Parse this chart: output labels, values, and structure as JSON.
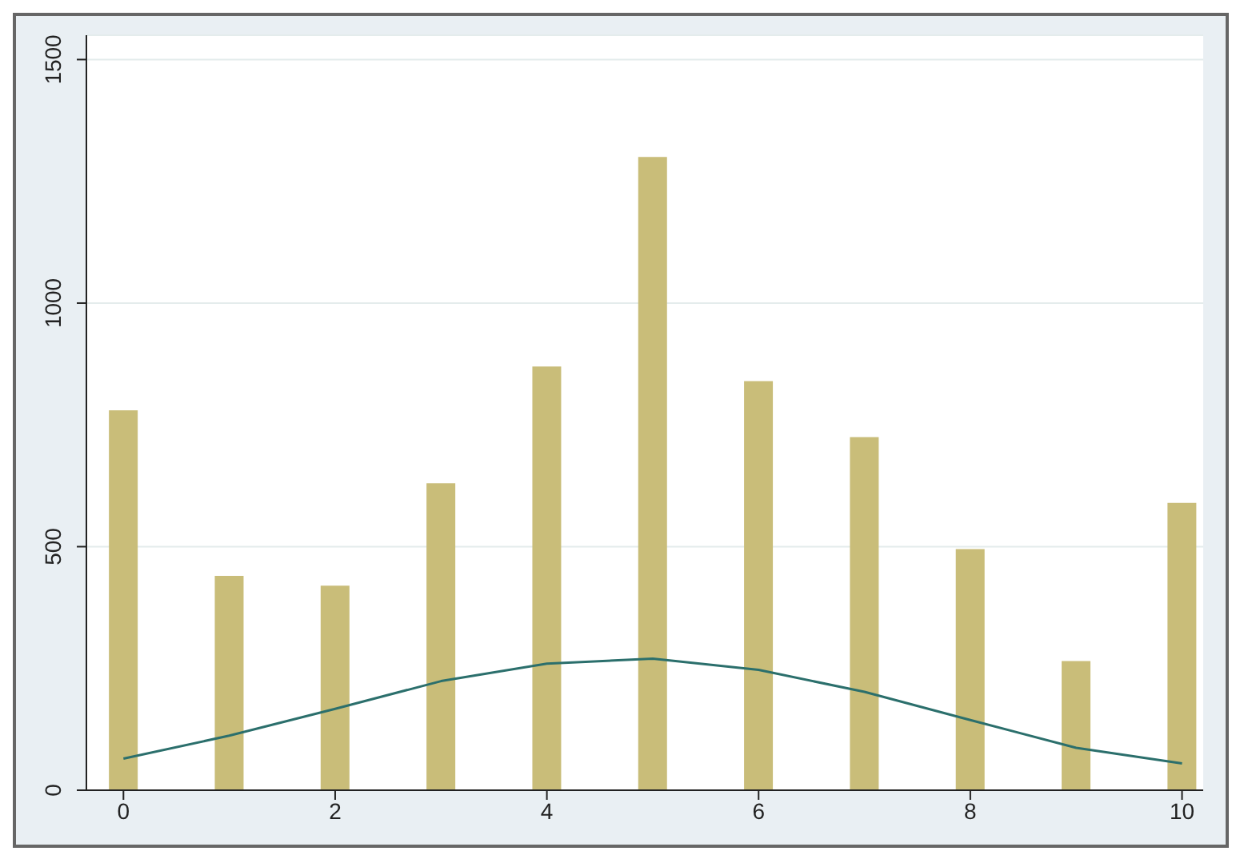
{
  "chart_data": {
    "type": "bar",
    "x": [
      0,
      1,
      2,
      3,
      4,
      5,
      6,
      7,
      8,
      9,
      10
    ],
    "series": [
      {
        "color": "#c9bd79",
        "values": [
          780,
          440,
          420,
          630,
          870,
          1300,
          840,
          725,
          495,
          265,
          590
        ]
      },
      {
        "type": "line",
        "color": "#2b6f6c",
        "values": [
          65,
          112,
          167,
          224,
          260,
          270,
          247,
          202,
          144,
          87,
          55
        ]
      }
    ],
    "xlim": [
      -0.35,
      10.2
    ],
    "xticks": [
      0,
      2,
      4,
      6,
      8,
      10
    ],
    "ylim": [
      0,
      1550
    ],
    "yticks": [
      0,
      500,
      1000,
      1500
    ],
    "grid": "y",
    "legend": false,
    "marker": "none",
    "line_style": "solid"
  }
}
